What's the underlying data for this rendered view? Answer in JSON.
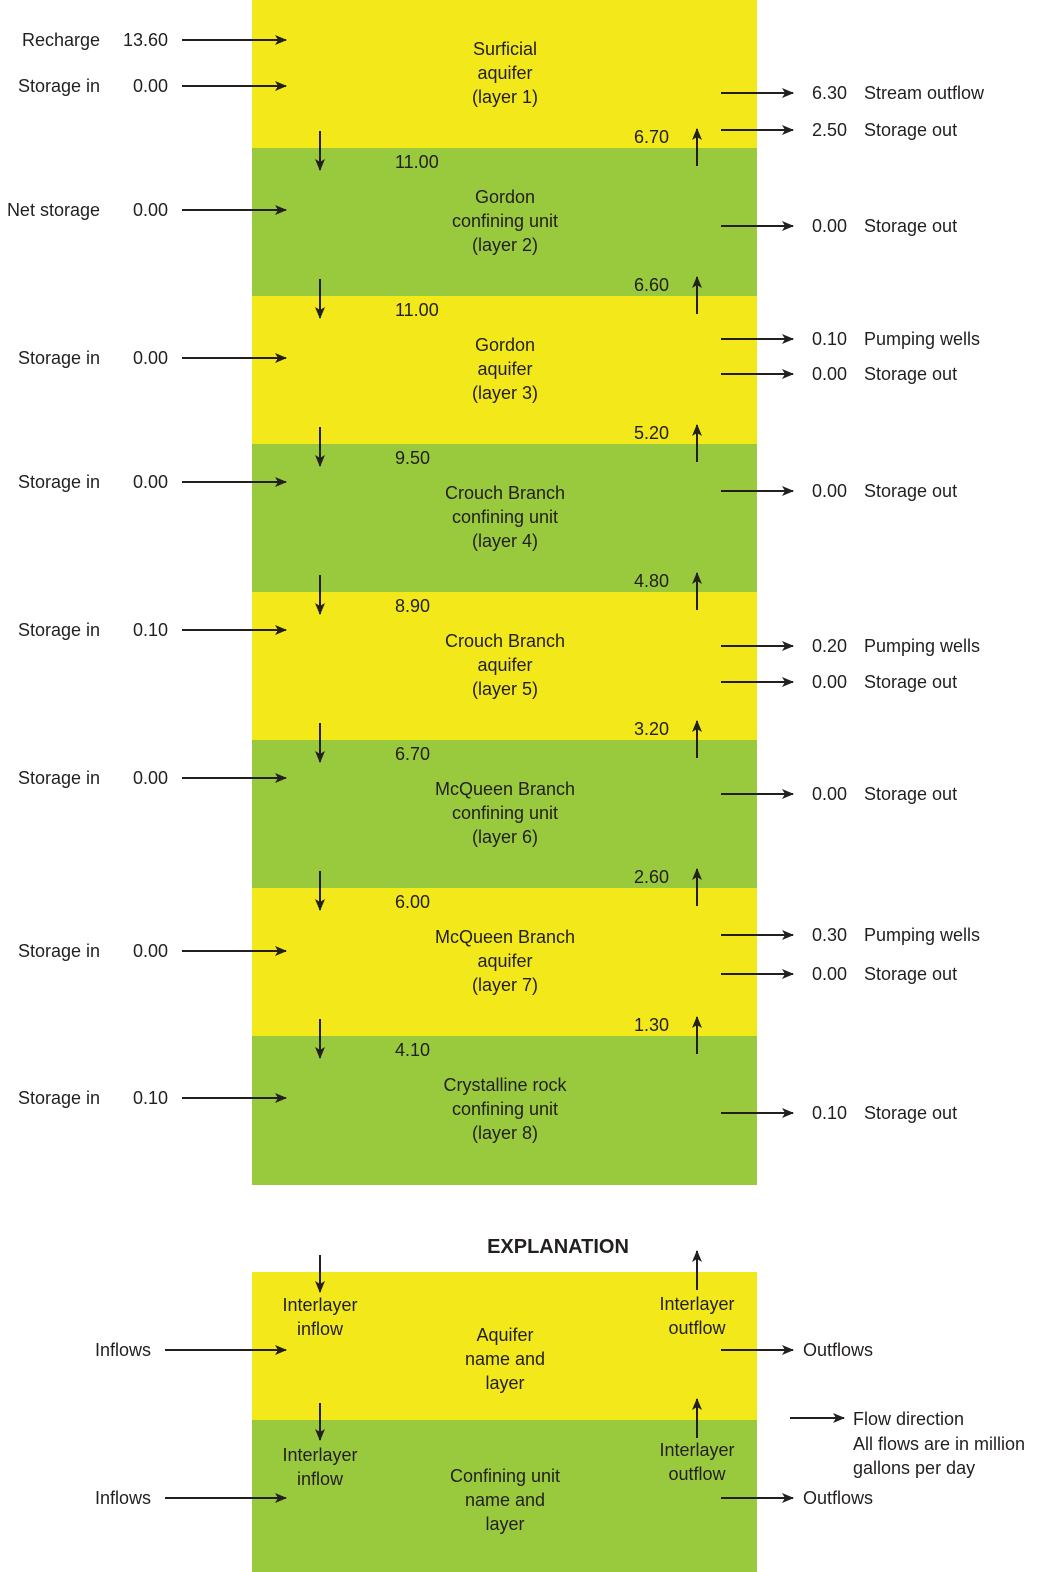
{
  "colors": {
    "aquifer": "#f2e81a",
    "confining": "#99c93c",
    "ink": "#231f20"
  },
  "layers": [
    {
      "type": "aquifer",
      "name": [
        "Surficial",
        "aquifer",
        "(layer 1)"
      ],
      "inflows": [
        {
          "value": "13.60",
          "label": "Recharge"
        },
        {
          "value": "0.00",
          "label": "Storage in"
        }
      ],
      "outflows": [
        {
          "value": "6.30",
          "label": "Stream outflow"
        },
        {
          "value": "2.50",
          "label": "Storage out"
        }
      ]
    },
    {
      "type": "confining",
      "name": [
        "Gordon",
        "confining unit",
        "(layer 2)"
      ],
      "inflows": [
        {
          "value": "0.00",
          "label": "Net storage"
        }
      ],
      "outflows": [
        {
          "value": "0.00",
          "label": "Storage out"
        }
      ]
    },
    {
      "type": "aquifer",
      "name": [
        "Gordon",
        "aquifer",
        "(layer 3)"
      ],
      "inflows": [
        {
          "value": "0.00",
          "label": "Storage in"
        }
      ],
      "outflows": [
        {
          "value": "0.10",
          "label": "Pumping wells"
        },
        {
          "value": "0.00",
          "label": "Storage out"
        }
      ]
    },
    {
      "type": "confining",
      "name": [
        "Crouch Branch",
        "confining unit",
        "(layer 4)"
      ],
      "inflows": [
        {
          "value": "0.00",
          "label": "Storage in"
        }
      ],
      "outflows": [
        {
          "value": "0.00",
          "label": "Storage out"
        }
      ]
    },
    {
      "type": "aquifer",
      "name": [
        "Crouch Branch",
        "aquifer",
        "(layer 5)"
      ],
      "inflows": [
        {
          "value": "0.10",
          "label": "Storage in"
        }
      ],
      "outflows": [
        {
          "value": "0.20",
          "label": "Pumping wells"
        },
        {
          "value": "0.00",
          "label": "Storage out"
        }
      ]
    },
    {
      "type": "confining",
      "name": [
        "McQueen Branch",
        "confining unit",
        "(layer 6)"
      ],
      "inflows": [
        {
          "value": "0.00",
          "label": "Storage in"
        }
      ],
      "outflows": [
        {
          "value": "0.00",
          "label": "Storage out"
        }
      ]
    },
    {
      "type": "aquifer",
      "name": [
        "McQueen Branch",
        "aquifer",
        "(layer 7)"
      ],
      "inflows": [
        {
          "value": "0.00",
          "label": "Storage in"
        }
      ],
      "outflows": [
        {
          "value": "0.30",
          "label": "Pumping wells"
        },
        {
          "value": "0.00",
          "label": "Storage out"
        }
      ]
    },
    {
      "type": "confining",
      "name": [
        "Crystalline rock",
        "confining unit",
        "(layer 8)"
      ],
      "inflows": [
        {
          "value": "0.10",
          "label": "Storage in"
        }
      ],
      "outflows": [
        {
          "value": "0.10",
          "label": "Storage out"
        }
      ]
    }
  ],
  "interlayer": [
    {
      "down": "11.00",
      "up": "6.70"
    },
    {
      "down": "11.00",
      "up": "6.60"
    },
    {
      "down": "9.50",
      "up": "5.20"
    },
    {
      "down": "8.90",
      "up": "4.80"
    },
    {
      "down": "6.70",
      "up": "3.20"
    },
    {
      "down": "6.00",
      "up": "2.60"
    },
    {
      "down": "4.10",
      "up": "1.30"
    }
  ],
  "explanation": {
    "title": "EXPLANATION",
    "aquifer_name": [
      "Aquifer",
      "name and",
      "layer"
    ],
    "confining_name": [
      "Confining unit",
      "name and",
      "layer"
    ],
    "interlayer_inflow": [
      "Interlayer",
      "inflow"
    ],
    "interlayer_outflow": [
      "Interlayer",
      "outflow"
    ],
    "inflows_label": "Inflows",
    "outflows_label": "Outflows",
    "flow_direction": "Flow direction",
    "units_note": [
      "All flows are in million",
      "gallons per day"
    ]
  }
}
